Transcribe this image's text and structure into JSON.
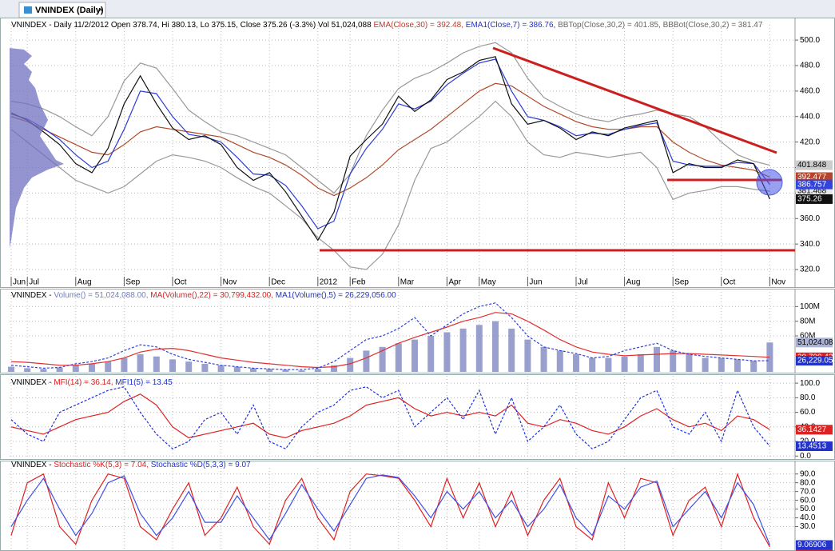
{
  "tab": {
    "title": "VNINDEX (Daily)",
    "close": "×"
  },
  "chart_data": [
    {
      "type": "line",
      "header": [
        {
          "text": "VNINDEX - Daily 11/2/2012 Open 378.74, Hi 380.13, Lo 375.15, Close 375.26 (-3.3%) Vol 51,024,088 ",
          "color": "#000000"
        },
        {
          "text": "EMA(Close,30) = 392.48,",
          "color": "#c0392b"
        },
        {
          "text": " EMA1(Close,7) = 386.76,",
          "color": "#2233cc"
        },
        {
          "text": " BBTop(Close,30,2) = 401.85, BBBot(Close,30,2) = 381.47",
          "color": "#666666"
        }
      ],
      "categories": [
        "Jun",
        "Jul",
        null,
        null,
        "Aug",
        null,
        null,
        "Sep",
        null,
        null,
        "Oct",
        null,
        null,
        "Nov",
        null,
        null,
        "Dec",
        null,
        null,
        "2012",
        null,
        "Feb",
        null,
        null,
        "Mar",
        null,
        null,
        "Apr",
        null,
        "May",
        null,
        null,
        "Jun",
        null,
        null,
        "Jul",
        null,
        null,
        "Aug",
        null,
        null,
        "Sep",
        null,
        null,
        "Oct",
        null,
        null,
        "Nov"
      ],
      "ylim": [
        315,
        512
      ],
      "yticks": [
        {
          "value": 320,
          "label": "320.0"
        },
        {
          "value": 340,
          "label": "340.0"
        },
        {
          "value": 360,
          "label": "360.0"
        },
        {
          "value": 380,
          "label": "380.0"
        },
        {
          "value": 400,
          "label": "400.0"
        },
        {
          "value": 420,
          "label": "420.0"
        },
        {
          "value": 440,
          "label": "440.0"
        },
        {
          "value": 460,
          "label": "460.0"
        },
        {
          "value": 480,
          "label": "480.0"
        },
        {
          "value": 500,
          "label": "500.0"
        }
      ],
      "grid": true,
      "series": [
        {
          "color": "#999999",
          "style": "line",
          "last_label": "401.848",
          "label_bg": "#cccccc",
          "label_fg": "#000000",
          "values": [
            452,
            450,
            446,
            440,
            432,
            425,
            440,
            468,
            482,
            478,
            462,
            445,
            436,
            428,
            425,
            420,
            415,
            410,
            400,
            390,
            380,
            395,
            425,
            445,
            462,
            470,
            475,
            482,
            490,
            495,
            498,
            490,
            470,
            455,
            448,
            442,
            438,
            436,
            440,
            442,
            445,
            442,
            440,
            432,
            420,
            410,
            405,
            401.848
          ]
        },
        {
          "color": "#999999",
          "style": "line",
          "last_label": "381.468",
          "label_bg": "#e8e8e8",
          "label_fg": "#000000",
          "values": [
            430,
            420,
            410,
            400,
            390,
            385,
            380,
            385,
            395,
            405,
            410,
            408,
            405,
            400,
            392,
            385,
            380,
            370,
            360,
            345,
            335,
            322,
            320,
            332,
            355,
            390,
            415,
            420,
            430,
            440,
            452,
            440,
            420,
            410,
            408,
            412,
            410,
            408,
            410,
            412,
            400,
            375,
            380,
            382,
            385,
            385,
            383,
            381.468
          ]
        },
        {
          "color": "#b04a2a",
          "style": "line",
          "last_label": "392.477",
          "label_bg": "#b5452a",
          "label_fg": "#ffffff",
          "values": [
            440,
            436,
            430,
            424,
            418,
            412,
            410,
            418,
            428,
            432,
            430,
            428,
            426,
            424,
            418,
            412,
            408,
            402,
            394,
            384,
            378,
            384,
            392,
            402,
            414,
            422,
            430,
            440,
            450,
            460,
            466,
            464,
            456,
            448,
            442,
            436,
            432,
            430,
            430,
            432,
            432,
            420,
            412,
            406,
            402,
            400,
            398,
            392.477
          ]
        },
        {
          "color": "#2a3bd6",
          "style": "line",
          "last_label": "386.757",
          "label_bg": "#3344dd",
          "label_fg": "#ffffff",
          "values": [
            442,
            438,
            431,
            422,
            410,
            400,
            405,
            430,
            460,
            458,
            440,
            426,
            424,
            420,
            408,
            395,
            394,
            386,
            370,
            352,
            358,
            395,
            415,
            430,
            450,
            446,
            452,
            465,
            474,
            482,
            485,
            460,
            440,
            437,
            432,
            425,
            427,
            426,
            430,
            433,
            435,
            405,
            402,
            401,
            401,
            404,
            403,
            386.757
          ]
        },
        {
          "color": "#111111",
          "style": "line",
          "last_label": "375.26",
          "label_bg": "#111111",
          "label_fg": "#ffffff",
          "values": [
            443,
            437,
            428,
            418,
            403,
            396,
            415,
            450,
            472,
            450,
            431,
            422,
            425,
            418,
            400,
            390,
            396,
            381,
            362,
            343,
            365,
            409,
            422,
            434,
            456,
            444,
            453,
            469,
            475,
            484,
            487,
            450,
            434,
            437,
            431,
            422,
            428,
            425,
            431,
            434,
            437,
            396,
            403,
            400,
            400,
            406,
            403,
            375.26
          ]
        }
      ]
    },
    {
      "type": "bar",
      "header": [
        {
          "text": "VNINDEX - ",
          "color": "#000000"
        },
        {
          "text": "Volume() = 51,024,088.00,",
          "color": "#7080c0"
        },
        {
          "text": " MA(Volume(),22) = 30,799,432.00,",
          "color": "#dd2222"
        },
        {
          "text": " MA1(Volume(),5) = 26,229,056.00",
          "color": "#2233cc"
        }
      ],
      "ylim": [
        11,
        120
      ],
      "yticks": [
        {
          "value": 60,
          "label": "60M"
        },
        {
          "value": 80,
          "label": "80M"
        },
        {
          "value": 100,
          "label": "100M"
        }
      ],
      "grid": true,
      "series": [
        {
          "color": "#8088c0",
          "style": "bar",
          "last_label": "51,024.08",
          "label_bg": "#aab2d8",
          "label_fg": "#000000",
          "values": [
            18,
            16,
            15,
            17,
            20,
            22,
            25,
            30,
            35,
            32,
            28,
            25,
            22,
            20,
            18,
            16,
            15,
            14,
            13,
            15,
            20,
            30,
            40,
            45,
            50,
            55,
            60,
            65,
            70,
            75,
            80,
            70,
            55,
            45,
            40,
            35,
            30,
            30,
            32,
            35,
            45,
            40,
            35,
            30,
            30,
            28,
            26,
            51.02408
          ]
        },
        {
          "color": "#e03030",
          "style": "line",
          "last_label": "30,799.43",
          "label_bg": "#dd2222",
          "label_fg": "#ffffff",
          "values": [
            25,
            24,
            22,
            20,
            20,
            22,
            25,
            30,
            38,
            42,
            43,
            40,
            35,
            30,
            27,
            24,
            22,
            20,
            18,
            17,
            18,
            22,
            30,
            40,
            50,
            58,
            65,
            72,
            80,
            85,
            92,
            90,
            80,
            68,
            55,
            45,
            38,
            35,
            33,
            34,
            35,
            36,
            36,
            35,
            34,
            33,
            32,
            30.79943
          ]
        },
        {
          "color": "#3040e0",
          "style": "dash",
          "last_label": "26,229.05",
          "label_bg": "#2233cc",
          "label_fg": "#ffffff",
          "values": [
            20,
            18,
            16,
            17,
            22,
            25,
            30,
            40,
            48,
            45,
            35,
            28,
            24,
            20,
            18,
            16,
            15,
            14,
            14,
            16,
            25,
            40,
            55,
            60,
            70,
            85,
            60,
            75,
            90,
            100,
            105,
            85,
            60,
            45,
            40,
            36,
            30,
            32,
            40,
            45,
            50,
            40,
            35,
            32,
            30,
            28,
            26,
            26.22905
          ]
        }
      ]
    },
    {
      "type": "line",
      "header": [
        {
          "text": "VNINDEX - ",
          "color": "#000000"
        },
        {
          "text": "MFI(14) = 36.14,",
          "color": "#dd2222"
        },
        {
          "text": " MFI1(5) = 13.45",
          "color": "#2233cc"
        }
      ],
      "ylim": [
        -3,
        110
      ],
      "yticks": [
        {
          "value": 0,
          "label": "0.0"
        },
        {
          "value": 20,
          "label": "20.0"
        },
        {
          "value": 40,
          "label": "40.0"
        },
        {
          "value": 60,
          "label": "60.0"
        },
        {
          "value": 80,
          "label": "80.0"
        },
        {
          "value": 100,
          "label": "100.0"
        }
      ],
      "grid": true,
      "series": [
        {
          "color": "#e02020",
          "style": "line",
          "last_label": "36.1427",
          "label_bg": "#dd2222",
          "label_fg": "#ffffff",
          "values": [
            40,
            35,
            30,
            40,
            50,
            55,
            60,
            75,
            85,
            70,
            40,
            25,
            30,
            35,
            40,
            45,
            30,
            25,
            35,
            40,
            45,
            55,
            70,
            75,
            80,
            65,
            55,
            60,
            55,
            60,
            55,
            70,
            45,
            40,
            50,
            45,
            35,
            30,
            40,
            55,
            65,
            50,
            40,
            45,
            35,
            55,
            50,
            36.1427
          ]
        },
        {
          "color": "#2030e0",
          "style": "dash",
          "last_label": "13.4513",
          "label_bg": "#2233cc",
          "label_fg": "#ffffff",
          "values": [
            50,
            30,
            20,
            60,
            70,
            80,
            90,
            95,
            60,
            30,
            10,
            20,
            50,
            60,
            30,
            70,
            20,
            10,
            40,
            60,
            70,
            90,
            95,
            80,
            90,
            40,
            60,
            80,
            50,
            90,
            30,
            80,
            20,
            40,
            70,
            30,
            10,
            20,
            50,
            80,
            90,
            40,
            30,
            60,
            20,
            90,
            40,
            13.4513
          ]
        }
      ]
    },
    {
      "type": "line",
      "header": [
        {
          "text": "VNINDEX - ",
          "color": "#000000"
        },
        {
          "text": "Stochastic %K(5,3) = 7.04,",
          "color": "#dd2222"
        },
        {
          "text": " Stochastic %D(5,3,3) = 9.07",
          "color": "#2233cc"
        }
      ],
      "ylim": [
        5,
        97
      ],
      "yticks": [
        {
          "value": 30,
          "label": "30.0"
        },
        {
          "value": 40,
          "label": "40.0"
        },
        {
          "value": 50,
          "label": "50.0"
        },
        {
          "value": 60,
          "label": "60.0"
        },
        {
          "value": 70,
          "label": "70.0"
        },
        {
          "value": 80,
          "label": "80.0"
        },
        {
          "value": 90,
          "label": "90.0"
        }
      ],
      "grid": true,
      "series": [
        {
          "color": "#e02020",
          "style": "line",
          "last_label": "7.0388",
          "label_bg": "#dd2222",
          "label_fg": "#ffffff",
          "values": [
            20,
            80,
            90,
            30,
            10,
            60,
            90,
            85,
            30,
            15,
            50,
            80,
            20,
            40,
            75,
            30,
            10,
            60,
            85,
            40,
            15,
            70,
            90,
            88,
            85,
            60,
            30,
            85,
            40,
            80,
            30,
            70,
            20,
            60,
            85,
            30,
            15,
            80,
            40,
            85,
            80,
            20,
            60,
            75,
            30,
            90,
            40,
            7.0388
          ]
        },
        {
          "color": "#4050e8",
          "style": "line",
          "last_label": "9.06906",
          "label_bg": "#2233cc",
          "label_fg": "#ffffff",
          "values": [
            30,
            60,
            85,
            50,
            20,
            45,
            80,
            88,
            45,
            20,
            40,
            70,
            35,
            35,
            65,
            40,
            15,
            45,
            78,
            50,
            25,
            55,
            85,
            89,
            86,
            65,
            40,
            70,
            50,
            70,
            40,
            60,
            30,
            50,
            78,
            40,
            20,
            65,
            50,
            75,
            82,
            30,
            50,
            70,
            40,
            80,
            55,
            9.06906
          ]
        }
      ]
    }
  ]
}
